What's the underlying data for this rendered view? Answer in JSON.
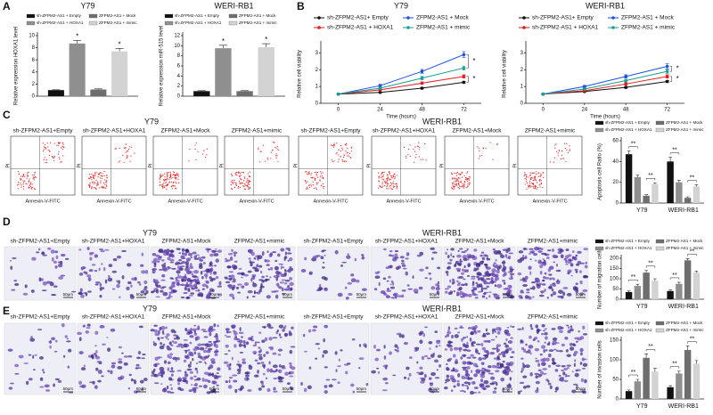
{
  "chart_data": [
    {
      "type": "bar",
      "title": "Y79",
      "ylabel": "Relative expression HOXA1 level",
      "categories": [
        null
      ],
      "series": [
        {
          "name": "sh-ZFPM2-AS1 + Empty",
          "color": "#111111",
          "values": [
            1.0
          ],
          "errors": [
            0.05
          ]
        },
        {
          "name": "sh-ZFPM2-AS1 + HOXA1",
          "color": "#8f8f8f",
          "values": [
            8.7
          ],
          "errors": [
            0.5
          ]
        },
        {
          "name": "ZFPM2-AS1 + Mock",
          "color": "#6e6e6e",
          "values": [
            1.1
          ],
          "errors": [
            0.1
          ]
        },
        {
          "name": "ZFPM2-AS1 + mimic",
          "color": "#d3d3d3",
          "values": [
            7.4
          ],
          "errors": [
            0.5
          ]
        }
      ],
      "ylim": [
        0,
        10
      ],
      "yticks": [
        0,
        2,
        4,
        6,
        8,
        10
      ],
      "annotations": [
        "*",
        "*"
      ]
    },
    {
      "type": "bar",
      "title": "WERI-RB1",
      "ylabel": "Relative expression miR-515 level",
      "categories": [
        null
      ],
      "series": [
        {
          "name": "sh-ZFPM2-AS1 + Empty",
          "color": "#111111",
          "values": [
            1.0
          ],
          "errors": [
            0.1
          ]
        },
        {
          "name": "sh-ZFPM2-AS1 + HOXA1",
          "color": "#8f8f8f",
          "values": [
            9.5
          ],
          "errors": [
            0.6
          ]
        },
        {
          "name": "ZFPM2-AS1 + Mock",
          "color": "#6e6e6e",
          "values": [
            1.0
          ],
          "errors": [
            0.1
          ]
        },
        {
          "name": "ZFPM2-AS1 + mimic",
          "color": "#d3d3d3",
          "values": [
            9.7
          ],
          "errors": [
            0.7
          ]
        }
      ],
      "ylim": [
        0,
        12
      ],
      "yticks": [
        0,
        2,
        4,
        6,
        8,
        10,
        12
      ],
      "annotations": [
        "*",
        "*"
      ]
    },
    {
      "type": "line",
      "title": "Y79",
      "xlabel": "Time (hours)",
      "ylabel": "Relative cell viability",
      "x": [
        0,
        24,
        48,
        72
      ],
      "series": [
        {
          "name": "sh-ZFPM2-AS1+ Empty",
          "color": "#111111",
          "values": [
            0.55,
            0.65,
            0.9,
            1.25
          ],
          "errors": [
            0.02,
            0.03,
            0.05,
            0.06
          ]
        },
        {
          "name": "sh-ZFPM2-AS1 + HOXA1",
          "color": "#e41a1c",
          "values": [
            0.55,
            0.8,
            1.2,
            1.6
          ],
          "errors": [
            0.02,
            0.05,
            0.08,
            0.1
          ]
        },
        {
          "name": "ZFPM2-AS1 + Mock",
          "color": "#1f4fe0",
          "values": [
            0.55,
            1.05,
            1.9,
            2.9
          ],
          "errors": [
            0.02,
            0.08,
            0.12,
            0.18
          ]
        },
        {
          "name": "ZFPM2-AS1 + mimic",
          "color": "#1a9e8f",
          "values": [
            0.55,
            0.9,
            1.5,
            2.1
          ],
          "errors": [
            0.02,
            0.06,
            0.1,
            0.12
          ]
        }
      ],
      "xlim": [
        -10,
        82
      ],
      "xticks": [
        0,
        24,
        48,
        72
      ],
      "ylim": [
        0,
        3.5
      ],
      "yticks": [
        0,
        1,
        2,
        3
      ],
      "annotations": [
        "*",
        "*"
      ]
    },
    {
      "type": "line",
      "title": "WERI-RB1",
      "xlabel": "Time (hours)",
      "ylabel": "Relative cell viability",
      "x": [
        0,
        24,
        48,
        72
      ],
      "series": [
        {
          "name": "sh-ZFPM2-AS1+ Empty",
          "color": "#111111",
          "values": [
            0.55,
            0.7,
            0.95,
            1.3
          ],
          "errors": [
            0.02,
            0.03,
            0.05,
            0.06
          ]
        },
        {
          "name": "sh-ZFPM2-AS1 + HOXA1",
          "color": "#e41a1c",
          "values": [
            0.55,
            0.75,
            1.15,
            1.6
          ],
          "errors": [
            0.02,
            0.05,
            0.07,
            0.1
          ]
        },
        {
          "name": "ZFPM2-AS1 + Mock",
          "color": "#1f4fe0",
          "values": [
            0.55,
            1.0,
            1.6,
            2.2
          ],
          "errors": [
            0.02,
            0.07,
            0.1,
            0.15
          ]
        },
        {
          "name": "ZFPM2-AS1 + mimic",
          "color": "#1a9e8f",
          "values": [
            0.55,
            0.85,
            1.35,
            1.9
          ],
          "errors": [
            0.02,
            0.05,
            0.08,
            0.12
          ]
        }
      ],
      "xlim": [
        -10,
        82
      ],
      "xticks": [
        0,
        24,
        48,
        72
      ],
      "ylim": [
        0,
        3.5
      ],
      "yticks": [
        0,
        1,
        2,
        3
      ],
      "annotations": [
        "*",
        "*"
      ]
    },
    {
      "type": "bar",
      "ylabel": "Apoptosis cell Ratio (%)",
      "categories": [
        "Y79",
        "WERI-RB1"
      ],
      "series": [
        {
          "name": "sh-ZFPM2-AS1 + Empty",
          "color": "#111111",
          "values": [
            47,
            40
          ],
          "errors": [
            3,
            4
          ]
        },
        {
          "name": "sh-ZFPM2-AS1 + HOXA1",
          "color": "#8f8f8f",
          "values": [
            25,
            20
          ],
          "errors": [
            2,
            2
          ]
        },
        {
          "name": "ZFPM2-AS1 + Mock",
          "color": "#6e6e6e",
          "values": [
            7,
            5
          ],
          "errors": [
            1,
            1
          ]
        },
        {
          "name": "ZFPM2-AS1 + mimic",
          "color": "#d3d3d3",
          "values": [
            18,
            16
          ],
          "errors": [
            1.5,
            1.5
          ]
        }
      ],
      "ylim": [
        0,
        60
      ],
      "yticks": [
        0,
        20,
        40,
        60
      ],
      "annotations": [
        "**",
        "**",
        "**",
        "**"
      ]
    },
    {
      "type": "bar",
      "ylabel": "Number of migration cells",
      "categories": [
        "Y79",
        "WERI-RB1"
      ],
      "series": [
        {
          "name": "sh-ZFPM2-AS1 + Empty",
          "color": "#111111",
          "values": [
            35,
            40
          ],
          "errors": [
            5,
            5
          ]
        },
        {
          "name": "sh-ZFPM2-AS1 + HOXA1",
          "color": "#8f8f8f",
          "values": [
            65,
            75
          ],
          "errors": [
            8,
            8
          ]
        },
        {
          "name": "ZFPM2-AS1 + Mock",
          "color": "#6e6e6e",
          "values": [
            130,
            190
          ],
          "errors": [
            10,
            8
          ]
        },
        {
          "name": "ZFPM2-AS1 + mimic",
          "color": "#d3d3d3",
          "values": [
            90,
            130
          ],
          "errors": [
            10,
            8
          ]
        }
      ],
      "ylim": [
        0,
        200
      ],
      "yticks": [
        0,
        50,
        100,
        150,
        200
      ],
      "annotations": [
        "**",
        "**",
        "**",
        "**"
      ]
    },
    {
      "type": "bar",
      "ylabel": "Number of invasion cells",
      "categories": [
        "Y79",
        "WERI-RB1"
      ],
      "series": [
        {
          "name": "sh-ZFPM2-AS1 + Empty",
          "color": "#111111",
          "values": [
            20,
            30
          ],
          "errors": [
            3,
            4
          ]
        },
        {
          "name": "sh-ZFPM2-AS1 + HOXA1",
          "color": "#8f8f8f",
          "values": [
            45,
            65
          ],
          "errors": [
            5,
            6
          ]
        },
        {
          "name": "ZFPM2-AS1 + Mock",
          "color": "#6e6e6e",
          "values": [
            105,
            125
          ],
          "errors": [
            10,
            10
          ]
        },
        {
          "name": "ZFPM2-AS1 + mimic",
          "color": "#d3d3d3",
          "values": [
            70,
            90
          ],
          "errors": [
            8,
            8
          ]
        }
      ],
      "ylim": [
        0,
        150
      ],
      "yticks": [
        0,
        50,
        100,
        150
      ],
      "annotations": [
        "**",
        "**",
        "**",
        "**"
      ]
    }
  ],
  "panel_labels": [
    "A",
    "B",
    "C",
    "D",
    "E"
  ],
  "flow": {
    "groups": [
      "Y79",
      "WERI-RB1"
    ],
    "captions": [
      "sh-ZFPM2-AS1+Empty",
      "sh-ZFPM2-AS1+HOXA1",
      "ZFPM2-AS1+Mock",
      "ZFPM2-AS1+mimic",
      "sh-ZFPM2-AS1+Empty",
      "sh-ZFPM2-AS1+HOXA1",
      "ZFPM2-AS1+Mock",
      "ZFPM2-AS1+mimic"
    ],
    "x_label": "Annexin-V-FITC",
    "y_label": "PI"
  },
  "migration": {
    "groups": [
      "Y79",
      "WERI-RB1"
    ],
    "captions": [
      "sh-ZFPM2-AS1+Empty",
      "sh-ZFPM2-AS1+HOXA1",
      "ZFPM2-AS1+Mock",
      "ZFPM2-AS1+mimic",
      "sh-ZFPM2-AS1+Empty",
      "sh-ZFPM2-AS1+HOXA1",
      "ZFPM2-AS1+Mock",
      "ZFPM2-AS1+mimic"
    ],
    "scale_bar": "50μm"
  },
  "invasion": {
    "groups": [
      "Y79",
      "WERI-RB1"
    ],
    "captions": [
      "sh-ZFPM2-AS1+Empty",
      "sh-ZFPM2-AS1+HOXA1",
      "ZFPM2-AS1+Mock",
      "ZFPM2-AS1+mimic",
      "sh-ZFPM2-AS1+Empty",
      "sh-ZFPM2-AS1+HOXA1",
      "ZFPM2-AS1+Mock",
      "ZFPM2-AS1+mimic"
    ],
    "scale_bar": "50μm"
  }
}
